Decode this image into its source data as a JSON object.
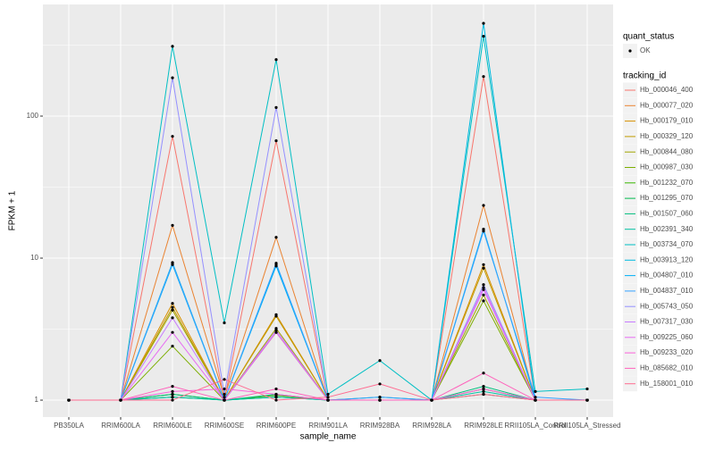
{
  "chart_data": {
    "type": "line",
    "log_y": true,
    "grid": true,
    "x_label": "sample_name",
    "y_label": "FPKM + 1",
    "categories": [
      "PB350LA",
      "RRIM600LA",
      "RRIM600LE",
      "RRIM600SE",
      "RRIM600PE",
      "RRIM901LA",
      "RRIM928BA",
      "RRIM928LA",
      "RRIM928LE",
      "RRII105LA_Control",
      "RRII105LA_Stressed"
    ],
    "ylim": [
      0.76,
      611
    ],
    "yticks": [
      1,
      10,
      100
    ],
    "minor_yticks": [
      3.162,
      31.62,
      316.2
    ],
    "point_legend": {
      "title": "quant_status",
      "labels": [
        "OK"
      ]
    },
    "legend_title": "tracking_id",
    "series": [
      {
        "name": "Hb_000046_400",
        "color": "#F8766D",
        "values": [
          1,
          1,
          72,
          1,
          67,
          1,
          1,
          1,
          190,
          1,
          1
        ]
      },
      {
        "name": "Hb_000077_020",
        "color": "#EA8331",
        "values": [
          1,
          1,
          17,
          1.05,
          14,
          1,
          1,
          1,
          23.5,
          1,
          1
        ]
      },
      {
        "name": "Hb_000179_010",
        "color": "#D89000",
        "values": [
          1,
          1,
          4.8,
          1,
          4,
          1,
          1,
          1,
          9,
          1,
          1
        ]
      },
      {
        "name": "Hb_000329_120",
        "color": "#C09B00",
        "values": [
          1,
          1,
          4.5,
          1,
          3.9,
          1,
          1,
          1,
          8.5,
          1,
          1
        ]
      },
      {
        "name": "Hb_000844_080",
        "color": "#A3A500",
        "values": [
          1,
          1,
          4.3,
          1,
          3.2,
          1,
          1,
          1,
          5.5,
          1,
          1
        ]
      },
      {
        "name": "Hb_000987_030",
        "color": "#7CAE00",
        "values": [
          1,
          1,
          2.4,
          1,
          3,
          1,
          1,
          1,
          5,
          1,
          1
        ]
      },
      {
        "name": "Hb_001232_070",
        "color": "#39B600",
        "values": [
          1,
          1,
          1.1,
          1,
          1.08,
          1,
          1,
          1,
          1.2,
          1,
          1
        ]
      },
      {
        "name": "Hb_001295_070",
        "color": "#00BB4E",
        "values": [
          1,
          1,
          1.05,
          1,
          1.05,
          1,
          1,
          1,
          1.1,
          1,
          1
        ]
      },
      {
        "name": "Hb_001507_060",
        "color": "#00BF7D",
        "values": [
          1,
          1,
          1.1,
          1,
          1.1,
          1,
          1,
          1,
          1.25,
          1,
          1
        ]
      },
      {
        "name": "Hb_002391_340",
        "color": "#00C1A3",
        "values": [
          1,
          1,
          1.05,
          1,
          1.05,
          1,
          1.05,
          1,
          1.15,
          1,
          1
        ]
      },
      {
        "name": "Hb_003734_070",
        "color": "#00BFC4",
        "values": [
          1,
          1,
          310,
          3.5,
          250,
          1.1,
          1.9,
          1,
          365,
          1.15,
          1.2
        ]
      },
      {
        "name": "Hb_003913_120",
        "color": "#00BAE0",
        "values": [
          1,
          1,
          9.3,
          1,
          9,
          1,
          1,
          1,
          450,
          1,
          1
        ]
      },
      {
        "name": "Hb_004807_010",
        "color": "#00B0F6",
        "values": [
          1,
          1,
          9,
          1,
          8.8,
          1,
          1,
          1,
          16,
          1,
          1
        ]
      },
      {
        "name": "Hb_004837_010",
        "color": "#35A2FF",
        "values": [
          1,
          1,
          9.2,
          1,
          9.2,
          1,
          1.05,
          1,
          15.5,
          1.05,
          1
        ]
      },
      {
        "name": "Hb_005743_050",
        "color": "#9590FF",
        "values": [
          1,
          1,
          186,
          1.1,
          115,
          1,
          1,
          1,
          6.5,
          1,
          1
        ]
      },
      {
        "name": "Hb_007317_030",
        "color": "#C77CFF",
        "values": [
          1,
          1,
          3.8,
          1,
          3.1,
          1,
          1,
          1,
          6,
          1,
          1
        ]
      },
      {
        "name": "Hb_009225_060",
        "color": "#E76BF3",
        "values": [
          1,
          1,
          3,
          1,
          3,
          1,
          1,
          1,
          6.2,
          1,
          1
        ]
      },
      {
        "name": "Hb_009233_020",
        "color": "#FA62DB",
        "values": [
          1,
          1,
          1.15,
          1.2,
          1.1,
          1,
          1,
          1,
          1.2,
          1,
          1
        ]
      },
      {
        "name": "Hb_085682_010",
        "color": "#FF62BC",
        "values": [
          1,
          1,
          1.25,
          1,
          1.2,
          1,
          1,
          1,
          1.55,
          1,
          1
        ]
      },
      {
        "name": "Hb_158001_010",
        "color": "#FF6C91",
        "values": [
          1,
          1,
          1,
          1.4,
          1,
          1.05,
          1.3,
          1,
          1.1,
          1,
          1
        ]
      }
    ]
  }
}
